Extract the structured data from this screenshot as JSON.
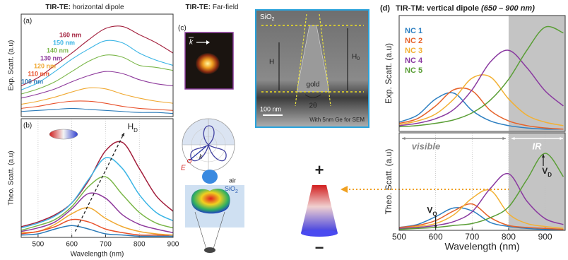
{
  "figure": {
    "left_title": {
      "bold": "TIR-TE:",
      "text": "horizontal dipole"
    },
    "middle_title": {
      "bold": "TIR-TE:",
      "text": "Far-field"
    },
    "panel_c": "(c)",
    "farfield": {
      "k": "k"
    },
    "polar": {
      "k": "k",
      "E": "E"
    },
    "simulation": {
      "air": "air",
      "sio2": {
        "text": "SiO",
        "sub": "2"
      }
    },
    "sem": {
      "sio2": {
        "text": "SiO",
        "sub": "2"
      },
      "h": "H",
      "h0": {
        "text": "H",
        "sub": "0"
      },
      "gold": "gold",
      "angle": "2θ",
      "scale": "100 nm",
      "note": "With 5nm Ge for SEM"
    },
    "charge": {
      "plus": "+",
      "minus": "−"
    },
    "panel_d": "(d)",
    "right_title": {
      "bold": "TIR-TM:",
      "text": "vertical dipole",
      "note": "(650 – 900 nm)"
    }
  },
  "chart_data": [
    {
      "type": "line",
      "panel": "(a)",
      "ylabel": "Exp. Scatt. (a.u)",
      "x": [
        450,
        500,
        550,
        600,
        650,
        700,
        750,
        800,
        850,
        900
      ],
      "xlim": [
        450,
        900
      ],
      "ylim": [
        0,
        1
      ],
      "series": [
        {
          "name": "160 nm",
          "color": "#a3203d",
          "values": [
            0.3,
            0.38,
            0.5,
            0.62,
            0.75,
            0.86,
            0.88,
            0.8,
            0.72,
            0.62
          ]
        },
        {
          "name": "150 nm",
          "color": "#3bb5e5",
          "values": [
            0.26,
            0.33,
            0.44,
            0.56,
            0.66,
            0.74,
            0.72,
            0.62,
            0.55,
            0.5
          ]
        },
        {
          "name": "140 nm",
          "color": "#7ab648",
          "values": [
            0.22,
            0.27,
            0.34,
            0.44,
            0.54,
            0.6,
            0.58,
            0.5,
            0.48,
            0.45
          ]
        },
        {
          "name": "130 nm",
          "color": "#8e3a9c",
          "values": [
            0.18,
            0.22,
            0.27,
            0.34,
            0.4,
            0.44,
            0.42,
            0.36,
            0.32,
            0.3
          ]
        },
        {
          "name": "120 nm",
          "color": "#f0a830",
          "values": [
            0.12,
            0.15,
            0.19,
            0.24,
            0.28,
            0.27,
            0.22,
            0.18,
            0.15,
            0.13
          ]
        },
        {
          "name": "110 nm",
          "color": "#e8502a",
          "values": [
            0.08,
            0.1,
            0.13,
            0.15,
            0.15,
            0.13,
            0.1,
            0.08,
            0.07,
            0.06
          ]
        },
        {
          "name": "100 nm",
          "color": "#2a7ab8",
          "values": [
            0.05,
            0.06,
            0.07,
            0.08,
            0.07,
            0.06,
            0.05,
            0.04,
            0.04,
            0.03
          ]
        }
      ]
    },
    {
      "type": "line",
      "panel": "(b)",
      "ylabel": "Theo. Scatt. (a.u)",
      "xlabel": "Wavelength (nm)",
      "x": [
        450,
        500,
        550,
        600,
        650,
        700,
        750,
        800,
        850,
        900
      ],
      "xlim": [
        450,
        900
      ],
      "ylim": [
        0,
        1
      ],
      "xticks": [
        500,
        600,
        700,
        800,
        900
      ],
      "grid": true,
      "annotation": {
        "text": "H",
        "sub": "D"
      },
      "series": [
        {
          "color": "#a3203d",
          "values": [
            0.09,
            0.13,
            0.19,
            0.29,
            0.48,
            0.73,
            0.8,
            0.58,
            0.35,
            0.22
          ]
        },
        {
          "color": "#3bb5e5",
          "values": [
            0.08,
            0.12,
            0.18,
            0.29,
            0.49,
            0.67,
            0.58,
            0.36,
            0.21,
            0.14
          ]
        },
        {
          "color": "#7ab648",
          "values": [
            0.06,
            0.1,
            0.15,
            0.26,
            0.43,
            0.51,
            0.36,
            0.21,
            0.12,
            0.08
          ]
        },
        {
          "color": "#8e3a9c",
          "values": [
            0.05,
            0.08,
            0.13,
            0.24,
            0.37,
            0.33,
            0.19,
            0.11,
            0.07,
            0.04
          ]
        },
        {
          "color": "#f0a830",
          "values": [
            0.04,
            0.05,
            0.11,
            0.2,
            0.25,
            0.16,
            0.09,
            0.05,
            0.03,
            0.02
          ]
        },
        {
          "color": "#e8502a",
          "values": [
            0.03,
            0.05,
            0.09,
            0.15,
            0.13,
            0.07,
            0.04,
            0.02,
            0.02,
            0.01
          ]
        },
        {
          "color": "#2a7ab8",
          "values": [
            0.02,
            0.03,
            0.07,
            0.1,
            0.07,
            0.03,
            0.02,
            0.01,
            0.01,
            0.01
          ]
        }
      ]
    },
    {
      "type": "line",
      "ylabel": "Exp. Scatt. (a.u)",
      "x": [
        500,
        550,
        600,
        650,
        700,
        750,
        800,
        850,
        900,
        950
      ],
      "xlim": [
        500,
        955
      ],
      "ylim": [
        0,
        1
      ],
      "shaded_from": 800,
      "series": [
        {
          "name": "NC 1",
          "color": "#2d7fc1",
          "values": [
            0.08,
            0.14,
            0.28,
            0.33,
            0.18,
            0.09,
            0.05,
            0.03,
            0.02,
            0.02
          ]
        },
        {
          "name": "NC 2",
          "color": "#e5622a",
          "values": [
            0.07,
            0.11,
            0.22,
            0.36,
            0.35,
            0.18,
            0.09,
            0.05,
            0.03,
            0.02
          ]
        },
        {
          "name": "NC 3",
          "color": "#f2b134",
          "values": [
            0.06,
            0.09,
            0.15,
            0.28,
            0.46,
            0.47,
            0.28,
            0.14,
            0.08,
            0.05
          ]
        },
        {
          "name": "NC 4",
          "color": "#8a3aa0",
          "values": [
            0.05,
            0.07,
            0.11,
            0.19,
            0.36,
            0.6,
            0.7,
            0.55,
            0.35,
            0.22
          ]
        },
        {
          "name": "NC 5",
          "color": "#5a9e36",
          "values": [
            0.04,
            0.05,
            0.07,
            0.1,
            0.16,
            0.27,
            0.45,
            0.7,
            0.9,
            0.85
          ]
        }
      ]
    },
    {
      "type": "line",
      "ylabel": "Theo. Scatt. (a.u)",
      "xlabel": "Wavelength (nm)",
      "x": [
        500,
        550,
        600,
        650,
        700,
        750,
        800,
        850,
        900,
        950
      ],
      "xlim": [
        500,
        955
      ],
      "ylim": [
        0,
        1
      ],
      "xticks": [
        500,
        600,
        700,
        800,
        900
      ],
      "grid": true,
      "shaded_from": 800,
      "annotations": {
        "visible": "visible",
        "ir": "IR",
        "vq": {
          "text": "V",
          "sub": "Q"
        },
        "vd": {
          "text": "V",
          "sub": "D"
        }
      },
      "series": [
        {
          "color": "#2d7fc1",
          "values": [
            0.03,
            0.06,
            0.14,
            0.23,
            0.2,
            0.08,
            0.04,
            0.02,
            0.01,
            0.01
          ]
        },
        {
          "color": "#e5622a",
          "values": [
            0.03,
            0.05,
            0.1,
            0.2,
            0.27,
            0.13,
            0.05,
            0.03,
            0.02,
            0.01
          ]
        },
        {
          "color": "#f2b134",
          "values": [
            0.02,
            0.04,
            0.07,
            0.16,
            0.33,
            0.41,
            0.17,
            0.07,
            0.04,
            0.02
          ]
        },
        {
          "color": "#8a3aa0",
          "values": [
            0.02,
            0.03,
            0.05,
            0.09,
            0.19,
            0.43,
            0.58,
            0.3,
            0.12,
            0.06
          ]
        },
        {
          "color": "#5a9e36",
          "values": [
            0.01,
            0.02,
            0.03,
            0.05,
            0.07,
            0.13,
            0.24,
            0.52,
            0.79,
            0.55
          ]
        }
      ]
    }
  ]
}
